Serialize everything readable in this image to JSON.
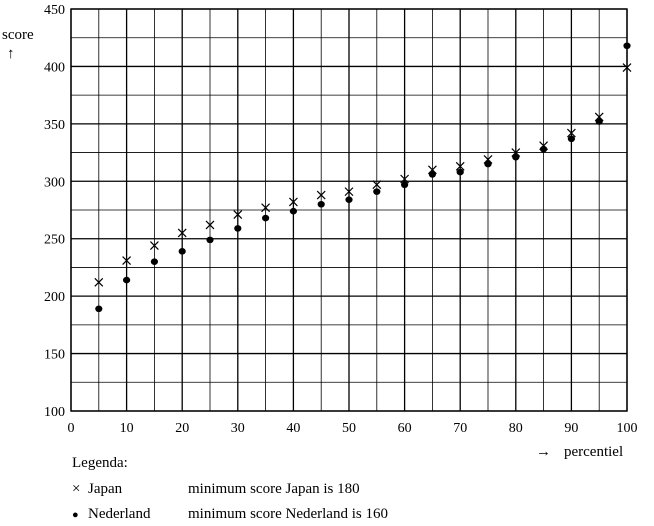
{
  "chart_data": {
    "type": "scatter",
    "ylabel": "score",
    "ylabel_arrow": "↑",
    "xlabel": "percentiel",
    "xlabel_arrow": "→",
    "xlim": [
      0,
      100
    ],
    "ylim": [
      100,
      450
    ],
    "x_major_ticks": [
      0,
      10,
      20,
      30,
      40,
      50,
      60,
      70,
      80,
      90,
      100
    ],
    "y_major_ticks": [
      100,
      150,
      200,
      250,
      300,
      350,
      400,
      450
    ],
    "x_grid_step": 5,
    "y_grid_step": 25,
    "grid": true,
    "series": [
      {
        "name": "Japan",
        "marker": "x",
        "x": [
          5,
          10,
          15,
          20,
          25,
          30,
          35,
          40,
          45,
          50,
          55,
          60,
          65,
          70,
          75,
          80,
          85,
          90,
          95,
          100
        ],
        "y": [
          212,
          231,
          244,
          255,
          262,
          271,
          277,
          282,
          288,
          291,
          297,
          302,
          310,
          313,
          319,
          325,
          331,
          342,
          356,
          399
        ]
      },
      {
        "name": "Nederland",
        "marker": "dot",
        "x": [
          5,
          10,
          15,
          20,
          25,
          30,
          35,
          40,
          45,
          50,
          55,
          60,
          65,
          70,
          75,
          80,
          85,
          90,
          95,
          100
        ],
        "y": [
          189,
          214,
          230,
          239,
          249,
          259,
          268,
          274,
          280,
          284,
          291,
          297,
          306,
          308,
          315,
          321,
          328,
          337,
          352,
          418
        ]
      }
    ]
  },
  "legend": {
    "title": "Legenda:",
    "items": [
      {
        "symbol": "×",
        "name": "Japan",
        "note": "minimum score Japan is 180"
      },
      {
        "symbol": "●",
        "name": "Nederland",
        "note": "minimum score Nederland is 160"
      }
    ]
  }
}
